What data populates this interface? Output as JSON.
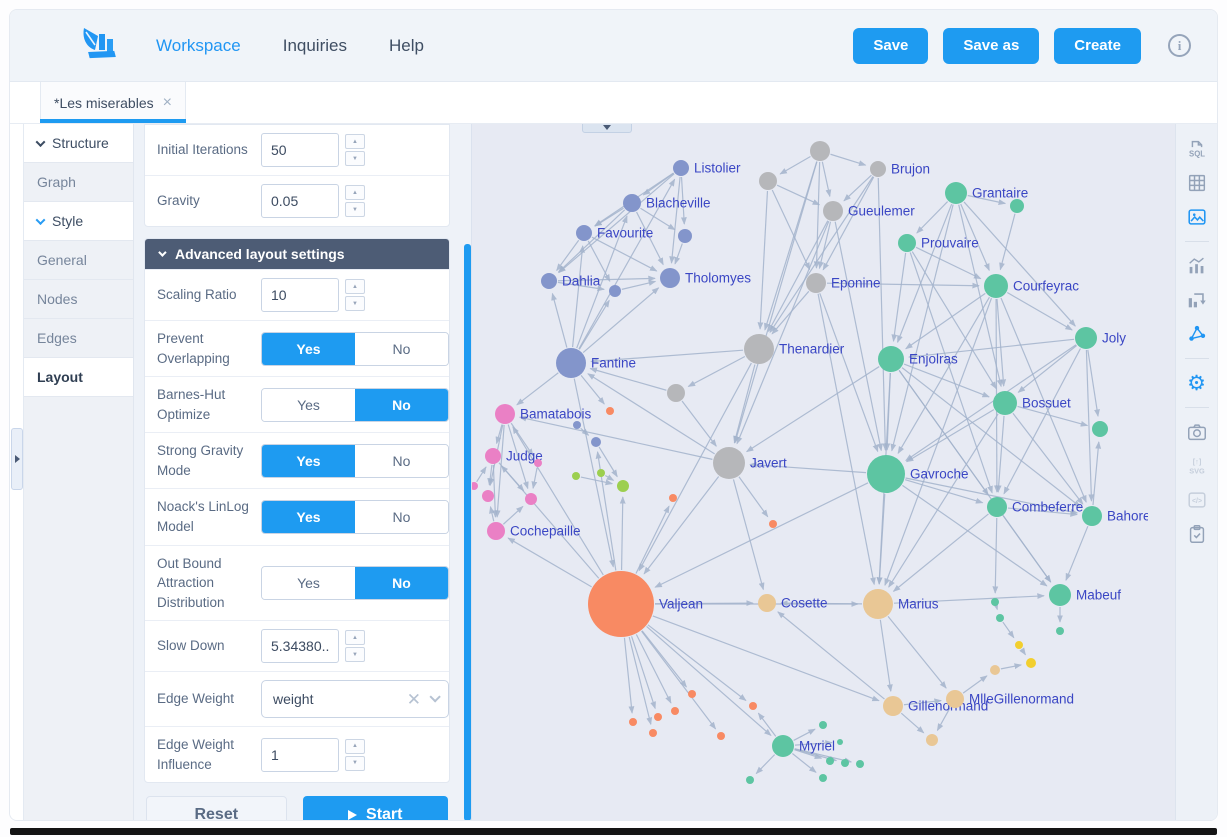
{
  "topbar": {
    "nav": [
      {
        "label": "Workspace",
        "active": true
      },
      {
        "label": "Inquiries",
        "active": false
      },
      {
        "label": "Help",
        "active": false
      }
    ],
    "actions": [
      {
        "label": "Save"
      },
      {
        "label": "Save as"
      },
      {
        "label": "Create"
      }
    ],
    "info_glyph": "i"
  },
  "tabs": [
    {
      "title": "*Les miserables",
      "close_glyph": "×"
    }
  ],
  "sidebar": {
    "items": [
      {
        "label": "Structure",
        "type": "header"
      },
      {
        "label": "Graph",
        "type": "item"
      },
      {
        "label": "Style",
        "type": "header"
      },
      {
        "label": "General",
        "type": "item"
      },
      {
        "label": "Nodes",
        "type": "item"
      },
      {
        "label": "Edges",
        "type": "item"
      },
      {
        "label": "Layout",
        "type": "selected"
      }
    ]
  },
  "panel": {
    "toggle_labels": {
      "yes": "Yes",
      "no": "No"
    },
    "top_rows": [
      {
        "label": "Initial Iterations",
        "value": "50"
      },
      {
        "label": "Gravity",
        "value": "0.05"
      }
    ],
    "advanced_header": "Advanced layout settings",
    "advanced_rows": [
      {
        "label": "Scaling Ratio",
        "type": "number",
        "value": "10"
      },
      {
        "label": "Prevent Overlapping",
        "type": "toggle",
        "value": "yes"
      },
      {
        "label": "Barnes-Hut Optimize",
        "type": "toggle",
        "value": "no"
      },
      {
        "label": "Strong Gravity Mode",
        "type": "toggle",
        "value": "yes"
      },
      {
        "label": "Noack's LinLog Model",
        "type": "toggle",
        "value": "yes"
      },
      {
        "label": "Out Bound Attraction Distribution",
        "type": "toggle",
        "value": "no"
      },
      {
        "label": "Slow Down",
        "type": "number",
        "value": "5.34380..."
      },
      {
        "label": "Edge Weight",
        "type": "select",
        "value": "weight"
      },
      {
        "label": "Edge Weight Influence",
        "type": "number",
        "value": "1"
      }
    ],
    "reset_label": "Reset",
    "start_label": "Start"
  },
  "toolbar": {
    "icons": [
      {
        "name": "sql",
        "label": "SQL",
        "state": "normal"
      },
      {
        "name": "table",
        "state": "normal"
      },
      {
        "name": "image",
        "state": "active"
      },
      {
        "name": "divider"
      },
      {
        "name": "chart",
        "state": "normal"
      },
      {
        "name": "pivot",
        "state": "normal"
      },
      {
        "name": "network",
        "state": "active"
      },
      {
        "name": "divider"
      },
      {
        "name": "gear",
        "state": "active",
        "glyph": "⚙"
      },
      {
        "name": "divider"
      },
      {
        "name": "camera",
        "state": "normal"
      },
      {
        "name": "svg-export",
        "label_top": "[↑]",
        "label": "SVG",
        "state": "disabled"
      },
      {
        "name": "code",
        "label": "</>",
        "state": "disabled"
      },
      {
        "name": "clipboard",
        "state": "normal"
      }
    ]
  },
  "graph": {
    "background": "#e7eaf3",
    "edge_color": "#a3b3cc",
    "label_color": "#3a46c4",
    "accent": "#1e9bf1",
    "colors": {
      "slate": "#8395cb",
      "gray": "#b6b7ba",
      "teal": "#5dc5a2",
      "pink": "#ea80c5",
      "orange": "#f88a63",
      "tan": "#e9c795",
      "lime": "#9ccf4f",
      "yellow": "#f2cf2e"
    },
    "nodes": [
      [
        "listolier",
        "Listolier",
        209,
        44,
        8,
        "slate"
      ],
      [
        "brujon",
        "Brujon",
        406,
        45,
        8,
        "gray"
      ],
      [
        "blacheville",
        "Blacheville",
        160,
        79,
        9,
        "slate"
      ],
      [
        "grantaire",
        "Grantaire",
        484,
        69,
        11,
        "teal"
      ],
      [
        "favourite",
        "Favourite",
        112,
        109,
        8,
        "slate"
      ],
      [
        "gueulemer",
        "Gueulemer",
        361,
        87,
        10,
        "gray"
      ],
      [
        "prouvaire",
        "Prouvaire",
        435,
        119,
        9,
        "teal"
      ],
      [
        "dahlia",
        "Dahlia",
        77,
        157,
        8,
        "slate"
      ],
      [
        "tholomyes",
        "Tholomyes",
        198,
        154,
        10,
        "slate"
      ],
      [
        "eponine",
        "Eponine",
        344,
        159,
        10,
        "gray"
      ],
      [
        "courfeyrac",
        "Courfeyrac",
        524,
        162,
        12,
        "teal"
      ],
      [
        "joly",
        "Joly",
        614,
        214,
        11,
        "teal"
      ],
      [
        "fantine",
        "Fantine",
        99,
        239,
        15,
        "slate"
      ],
      [
        "thenardier",
        "Thenardier",
        287,
        225,
        15,
        "gray"
      ],
      [
        "enjolras",
        "Enjolras",
        419,
        235,
        13,
        "teal"
      ],
      [
        "bamatabois",
        "Bamatabois",
        33,
        290,
        10,
        "pink"
      ],
      [
        "bossuet",
        "Bossuet",
        533,
        279,
        12,
        "teal"
      ],
      [
        "judge",
        "Judge",
        21,
        332,
        8,
        "pink"
      ],
      [
        "javert",
        "Javert",
        257,
        339,
        16,
        "gray"
      ],
      [
        "gavroche",
        "Gavroche",
        414,
        350,
        19,
        "teal"
      ],
      [
        "cochepaille",
        "Cochepaille",
        24,
        407,
        9,
        "pink"
      ],
      [
        "combeferre",
        "Combeferre",
        525,
        383,
        10,
        "teal"
      ],
      [
        "bahorel",
        "Bahorel",
        620,
        392,
        10,
        "teal"
      ],
      [
        "valjean",
        "Valjean",
        149,
        480,
        33,
        "orange"
      ],
      [
        "cosette",
        "Cosette",
        295,
        479,
        9,
        "tan"
      ],
      [
        "marius",
        "Marius",
        406,
        480,
        15,
        "tan"
      ],
      [
        "mabeuf",
        "Mabeuf",
        588,
        471,
        11,
        "teal"
      ],
      [
        "gillenormand",
        "Gillenormand",
        421,
        582,
        10,
        "tan"
      ],
      [
        "mllegillenormand",
        "MlleGillenormand",
        483,
        575,
        9,
        "tan"
      ],
      [
        "myriel",
        "Myriel",
        311,
        622,
        11,
        "teal"
      ],
      [
        "u1",
        "",
        348,
        27,
        10,
        "gray"
      ],
      [
        "u2",
        "",
        296,
        57,
        9,
        "gray"
      ],
      [
        "u3",
        "",
        545,
        82,
        7,
        "teal"
      ],
      [
        "u4",
        "",
        213,
        112,
        7,
        "slate"
      ],
      [
        "u5",
        "",
        143,
        167,
        6,
        "slate"
      ],
      [
        "u6",
        "",
        204,
        269,
        9,
        "gray"
      ],
      [
        "u7",
        "",
        628,
        305,
        8,
        "teal"
      ],
      [
        "p1",
        "",
        66,
        339,
        4,
        "pink"
      ],
      [
        "p2",
        "",
        16,
        372,
        6,
        "pink"
      ],
      [
        "p3",
        "",
        59,
        375,
        6,
        "pink"
      ],
      [
        "p4",
        "",
        2,
        362,
        4,
        "pink"
      ],
      [
        "o1",
        "",
        138,
        287,
        4,
        "orange"
      ],
      [
        "o2",
        "",
        201,
        374,
        4,
        "orange"
      ],
      [
        "o3",
        "",
        301,
        400,
        4,
        "orange"
      ],
      [
        "b1",
        "",
        105,
        301,
        4,
        "slate"
      ],
      [
        "b2",
        "",
        124,
        318,
        5,
        "slate"
      ],
      [
        "l1",
        "",
        129,
        349,
        4,
        "lime"
      ],
      [
        "l2",
        "",
        151,
        362,
        6,
        "lime"
      ],
      [
        "l3",
        "",
        104,
        352,
        4,
        "lime"
      ],
      [
        "tn1",
        "",
        460,
        616,
        6,
        "tan"
      ],
      [
        "tn2",
        "",
        523,
        546,
        5,
        "tan"
      ],
      [
        "y1",
        "",
        559,
        539,
        5,
        "yellow"
      ],
      [
        "y2",
        "",
        547,
        521,
        4,
        "yellow"
      ],
      [
        "ts1",
        "",
        523,
        478,
        4,
        "teal"
      ],
      [
        "ts2",
        "",
        528,
        494,
        4,
        "teal"
      ],
      [
        "ts3",
        "",
        588,
        507,
        4,
        "teal"
      ],
      [
        "ms1",
        "",
        351,
        601,
        4,
        "teal"
      ],
      [
        "ms2",
        "",
        368,
        618,
        3,
        "teal"
      ],
      [
        "ms3",
        "",
        358,
        637,
        4,
        "teal"
      ],
      [
        "ms4",
        "",
        373,
        639,
        4,
        "teal"
      ],
      [
        "ms5",
        "",
        388,
        640,
        4,
        "teal"
      ],
      [
        "ms6",
        "",
        351,
        654,
        4,
        "teal"
      ],
      [
        "ms7",
        "",
        278,
        656,
        4,
        "teal"
      ],
      [
        "mo1",
        "",
        281,
        582,
        4,
        "orange"
      ],
      [
        "vs1",
        "",
        161,
        598,
        4,
        "orange"
      ],
      [
        "vs2",
        "",
        181,
        609,
        4,
        "orange"
      ],
      [
        "vs3",
        "",
        186,
        593,
        4,
        "orange"
      ],
      [
        "vs4",
        "",
        203,
        587,
        4,
        "orange"
      ],
      [
        "vs5",
        "",
        220,
        570,
        4,
        "orange"
      ],
      [
        "vs6",
        "",
        249,
        612,
        4,
        "orange"
      ]
    ],
    "edges": [
      [
        "listolier",
        "tholomyes"
      ],
      [
        "listolier",
        "blacheville"
      ],
      [
        "listolier",
        "favourite"
      ],
      [
        "listolier",
        "dahlia"
      ],
      [
        "listolier",
        "u4"
      ],
      [
        "blacheville",
        "tholomyes"
      ],
      [
        "blacheville",
        "favourite"
      ],
      [
        "blacheville",
        "dahlia"
      ],
      [
        "blacheville",
        "u4"
      ],
      [
        "favourite",
        "tholomyes"
      ],
      [
        "favourite",
        "dahlia"
      ],
      [
        "favourite",
        "u5"
      ],
      [
        "dahlia",
        "tholomyes"
      ],
      [
        "dahlia",
        "u5"
      ],
      [
        "u4",
        "tholomyes"
      ],
      [
        "u5",
        "tholomyes"
      ],
      [
        "fantine",
        "tholomyes"
      ],
      [
        "fantine",
        "dahlia"
      ],
      [
        "fantine",
        "favourite"
      ],
      [
        "fantine",
        "blacheville"
      ],
      [
        "fantine",
        "u5"
      ],
      [
        "fantine",
        "listolier"
      ],
      [
        "u1",
        "brujon"
      ],
      [
        "u1",
        "gueulemer"
      ],
      [
        "u1",
        "u2"
      ],
      [
        "u1",
        "eponine"
      ],
      [
        "u1",
        "thenardier"
      ],
      [
        "u1",
        "javert"
      ],
      [
        "u2",
        "thenardier"
      ],
      [
        "u2",
        "eponine"
      ],
      [
        "u2",
        "gueulemer"
      ],
      [
        "brujon",
        "gueulemer"
      ],
      [
        "brujon",
        "eponine"
      ],
      [
        "brujon",
        "thenardier"
      ],
      [
        "brujon",
        "gavroche"
      ],
      [
        "gueulemer",
        "thenardier"
      ],
      [
        "gueulemer",
        "eponine"
      ],
      [
        "gueulemer",
        "gavroche"
      ],
      [
        "gueulemer",
        "javert"
      ],
      [
        "eponine",
        "thenardier"
      ],
      [
        "eponine",
        "gavroche"
      ],
      [
        "eponine",
        "courfeyrac"
      ],
      [
        "eponine",
        "marius"
      ],
      [
        "thenardier",
        "javert"
      ],
      [
        "thenardier",
        "valjean"
      ],
      [
        "thenardier",
        "u6"
      ],
      [
        "thenardier",
        "fantine"
      ],
      [
        "u6",
        "javert"
      ],
      [
        "u6",
        "fantine"
      ],
      [
        "grantaire",
        "u3"
      ],
      [
        "grantaire",
        "prouvaire"
      ],
      [
        "grantaire",
        "courfeyrac"
      ],
      [
        "grantaire",
        "enjolras"
      ],
      [
        "grantaire",
        "joly"
      ],
      [
        "grantaire",
        "bossuet"
      ],
      [
        "grantaire",
        "gavroche"
      ],
      [
        "u3",
        "courfeyrac"
      ],
      [
        "prouvaire",
        "courfeyrac"
      ],
      [
        "prouvaire",
        "enjolras"
      ],
      [
        "prouvaire",
        "bossuet"
      ],
      [
        "prouvaire",
        "combeferre"
      ],
      [
        "courfeyrac",
        "enjolras"
      ],
      [
        "courfeyrac",
        "joly"
      ],
      [
        "courfeyrac",
        "bossuet"
      ],
      [
        "courfeyrac",
        "gavroche"
      ],
      [
        "courfeyrac",
        "combeferre"
      ],
      [
        "courfeyrac",
        "bahorel"
      ],
      [
        "courfeyrac",
        "marius"
      ],
      [
        "joly",
        "enjolras"
      ],
      [
        "joly",
        "bossuet"
      ],
      [
        "joly",
        "bahorel"
      ],
      [
        "joly",
        "u7"
      ],
      [
        "joly",
        "gavroche"
      ],
      [
        "joly",
        "combeferre"
      ],
      [
        "enjolras",
        "bossuet"
      ],
      [
        "enjolras",
        "gavroche"
      ],
      [
        "enjolras",
        "combeferre"
      ],
      [
        "enjolras",
        "bahorel"
      ],
      [
        "enjolras",
        "marius"
      ],
      [
        "enjolras",
        "javert"
      ],
      [
        "enjolras",
        "mabeuf"
      ],
      [
        "bossuet",
        "gavroche"
      ],
      [
        "bossuet",
        "combeferre"
      ],
      [
        "bossuet",
        "bahorel"
      ],
      [
        "bossuet",
        "u7"
      ],
      [
        "bossuet",
        "marius"
      ],
      [
        "gavroche",
        "combeferre"
      ],
      [
        "gavroche",
        "bahorel"
      ],
      [
        "gavroche",
        "marius"
      ],
      [
        "gavroche",
        "javert"
      ],
      [
        "gavroche",
        "valjean"
      ],
      [
        "gavroche",
        "mabeuf"
      ],
      [
        "combeferre",
        "bahorel"
      ],
      [
        "combeferre",
        "marius"
      ],
      [
        "combeferre",
        "mabeuf"
      ],
      [
        "combeferre",
        "ts1"
      ],
      [
        "bahorel",
        "u7"
      ],
      [
        "bahorel",
        "mabeuf"
      ],
      [
        "marius",
        "mabeuf"
      ],
      [
        "marius",
        "cosette"
      ],
      [
        "marius",
        "gillenormand"
      ],
      [
        "marius",
        "mllegillenormand"
      ],
      [
        "javert",
        "valjean"
      ],
      [
        "javert",
        "bamatabois"
      ],
      [
        "javert",
        "o3"
      ],
      [
        "javert",
        "fantine"
      ],
      [
        "javert",
        "cosette"
      ],
      [
        "fantine",
        "valjean"
      ],
      [
        "fantine",
        "bamatabois"
      ],
      [
        "fantine",
        "o1"
      ],
      [
        "valjean",
        "cosette"
      ],
      [
        "valjean",
        "marius"
      ],
      [
        "valjean",
        "myriel"
      ],
      [
        "valjean",
        "judge"
      ],
      [
        "valjean",
        "bamatabois"
      ],
      [
        "valjean",
        "cochepaille"
      ],
      [
        "valjean",
        "gillenormand"
      ],
      [
        "valjean",
        "mo1"
      ],
      [
        "valjean",
        "vs1"
      ],
      [
        "valjean",
        "vs2"
      ],
      [
        "valjean",
        "vs3"
      ],
      [
        "valjean",
        "vs4"
      ],
      [
        "valjean",
        "vs5"
      ],
      [
        "valjean",
        "vs6"
      ],
      [
        "valjean",
        "o2"
      ],
      [
        "valjean",
        "l2"
      ],
      [
        "valjean",
        "b2"
      ],
      [
        "bamatabois",
        "judge"
      ],
      [
        "bamatabois",
        "cochepaille"
      ],
      [
        "bamatabois",
        "p1"
      ],
      [
        "bamatabois",
        "p2"
      ],
      [
        "bamatabois",
        "p3"
      ],
      [
        "judge",
        "cochepaille"
      ],
      [
        "judge",
        "p2"
      ],
      [
        "judge",
        "p3"
      ],
      [
        "cochepaille",
        "p2"
      ],
      [
        "cochepaille",
        "p3"
      ],
      [
        "p1",
        "p3"
      ],
      [
        "p4",
        "judge"
      ],
      [
        "gillenormand",
        "mllegillenormand"
      ],
      [
        "gillenormand",
        "tn1"
      ],
      [
        "gillenormand",
        "cosette"
      ],
      [
        "mllegillenormand",
        "tn2"
      ],
      [
        "mllegillenormand",
        "tn1"
      ],
      [
        "tn2",
        "y1"
      ],
      [
        "myriel",
        "ms1"
      ],
      [
        "myriel",
        "ms2"
      ],
      [
        "myriel",
        "ms3"
      ],
      [
        "myriel",
        "ms4"
      ],
      [
        "myriel",
        "ms5"
      ],
      [
        "myriel",
        "ms6"
      ],
      [
        "myriel",
        "ms7"
      ],
      [
        "myriel",
        "mo1"
      ],
      [
        "ts1",
        "ts2"
      ],
      [
        "ts2",
        "y2"
      ],
      [
        "y2",
        "y1"
      ],
      [
        "mabeuf",
        "ts3"
      ],
      [
        "b1",
        "b2"
      ],
      [
        "b2",
        "l2"
      ],
      [
        "l1",
        "l2"
      ],
      [
        "l3",
        "l2"
      ]
    ]
  }
}
